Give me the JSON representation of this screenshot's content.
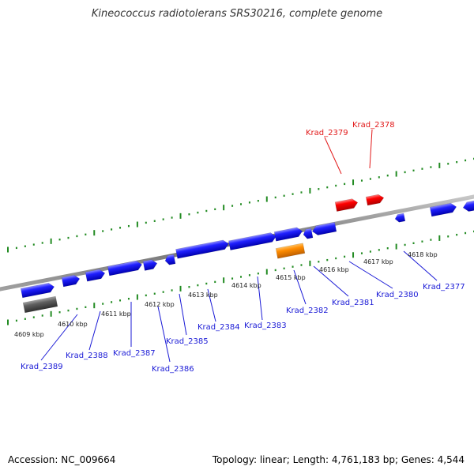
{
  "title": "Kineococcus radiotolerans SRS30216, complete genome",
  "footer": {
    "accession": "Accession: NC_009664",
    "topology": "Topology: linear; Length: 4,761,183 bp; Genes: 4,544"
  },
  "colors": {
    "forward_gene": "#1010ee",
    "other_gene": "#ff0000",
    "orange_feature": "#ff8c00",
    "gray_feature": "#555555",
    "backbone": "#888888",
    "ticks": "#228B22",
    "blue_label": "#1a1ad6",
    "red_label": "#e21a1a"
  },
  "kbp_labels": [
    "4609 kbp",
    "4610 kbp",
    "4611 kbp",
    "4612 kbp",
    "4613 kbp",
    "4614 kbp",
    "4615 kbp",
    "4616 kbp",
    "4617 kbp",
    "4618 kbp"
  ],
  "gene_labels_bottom": [
    "Krad_2389",
    "Krad_2388",
    "Krad_2387",
    "Krad_2386",
    "Krad_2385",
    "Krad_2384",
    "Krad_2383",
    "Krad_2382",
    "Krad_2381",
    "Krad_2380",
    "Krad_2377"
  ],
  "gene_labels_top": [
    "Krad_2379",
    "Krad_2378"
  ]
}
